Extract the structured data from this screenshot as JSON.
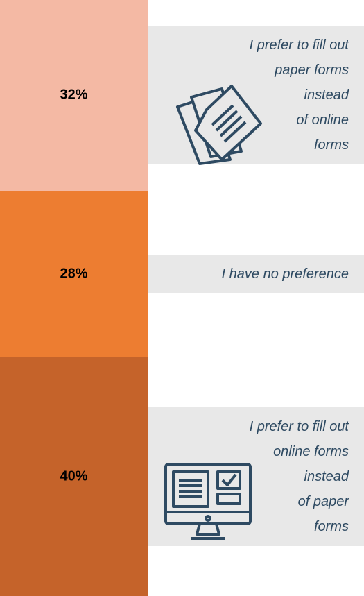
{
  "chart_data": {
    "type": "bar",
    "categories": [
      "I prefer to fill out\npaper forms\ninstead\nof online\nforms",
      "I have no preference",
      "I prefer to fill out\nonline forms\ninstead\nof paper\nforms"
    ],
    "values": [
      32,
      28,
      40
    ],
    "value_labels": [
      "32%",
      "28%",
      "40%"
    ],
    "colors": [
      "#f4b9a4",
      "#ed7d31",
      "#c5632a"
    ],
    "ylim": [
      0,
      100
    ]
  }
}
